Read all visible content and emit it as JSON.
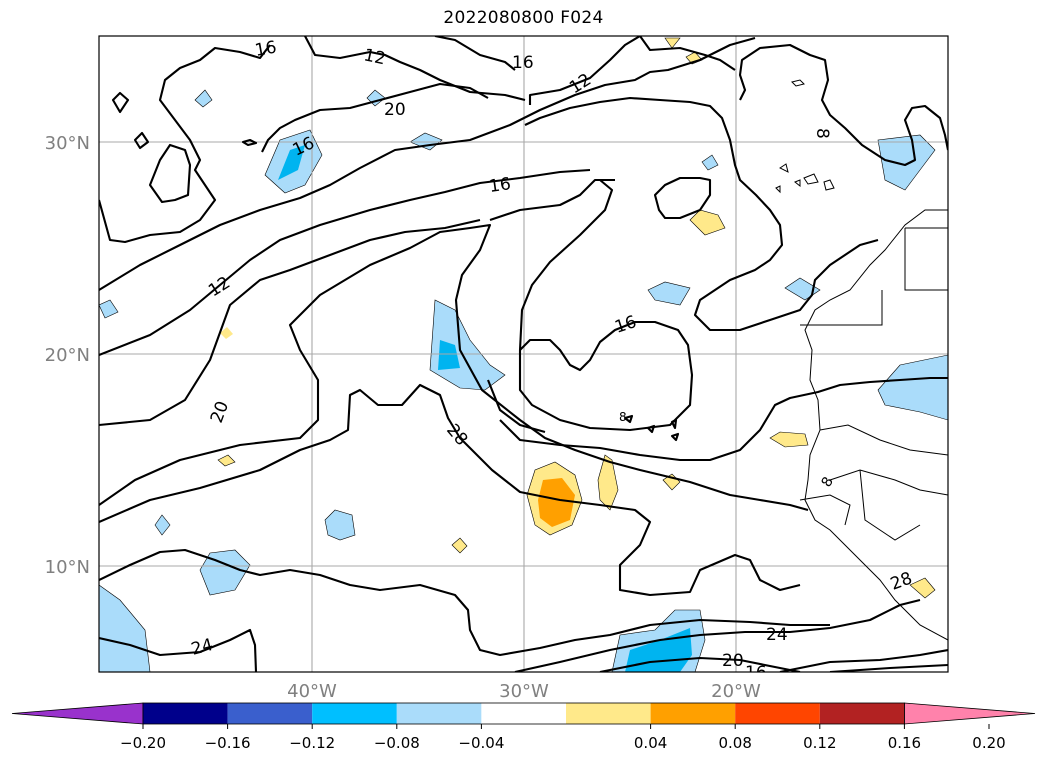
{
  "title": "2022080800 F024",
  "map": {
    "lat_labels": [
      "30°N",
      "20°N",
      "10°N"
    ],
    "lon_labels": [
      "40°W",
      "30°W",
      "20°W"
    ],
    "contour_labels": [
      "16",
      "12",
      "16",
      "12",
      "20",
      "16",
      "16",
      "12",
      "16",
      "20",
      "28",
      "8",
      "8",
      "24",
      "20",
      "16",
      "24",
      "28",
      "8"
    ],
    "colors": {
      "neg_light": "#aadcfa",
      "neg_mid": "#00b4f0",
      "pos_light": "#ffe98a",
      "pos_mid": "#ffa000",
      "contour": "#000000",
      "grid": "#a8a8a8",
      "axis_label": "#808080"
    }
  },
  "colorbar": {
    "colors": [
      "#9932cc",
      "#00008b",
      "#3a5fcd",
      "#00bfff",
      "#aadcfa",
      "#ffffff",
      "#ffe98a",
      "#ffa000",
      "#ff4500",
      "#b22222",
      "#ff82ab"
    ],
    "tick_labels": [
      "−0.20",
      "−0.16",
      "−0.12",
      "−0.08",
      "−0.04",
      "0.04",
      "0.08",
      "0.12",
      "0.16",
      "0.20"
    ]
  }
}
